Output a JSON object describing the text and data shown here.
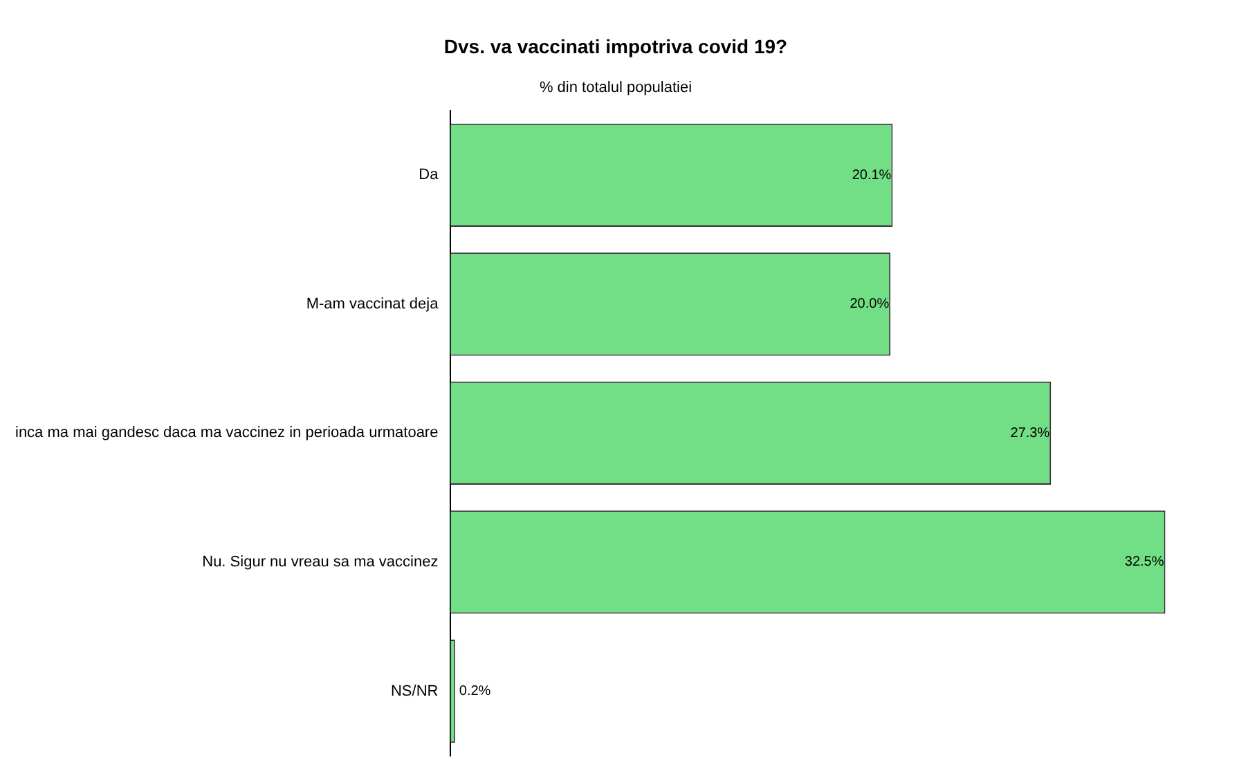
{
  "chart_data": {
    "type": "bar",
    "orientation": "horizontal",
    "title": "Dvs. va vaccinati impotriva covid 19?",
    "subtitle": "% din totalul populatiei",
    "categories": [
      "Da",
      "M-am vaccinat deja",
      "inca ma mai gandesc daca ma vaccinez in perioada urmatoare",
      "Nu. Sigur nu vreau sa ma vaccinez",
      "NS/NR"
    ],
    "values": [
      20.1,
      20.0,
      27.3,
      32.5,
      0.2
    ],
    "value_labels": [
      "20.1%",
      "20.0%",
      "27.3%",
      "32.5%",
      "0.2%"
    ],
    "color": "#72de85",
    "tick_labels": "y"
  }
}
